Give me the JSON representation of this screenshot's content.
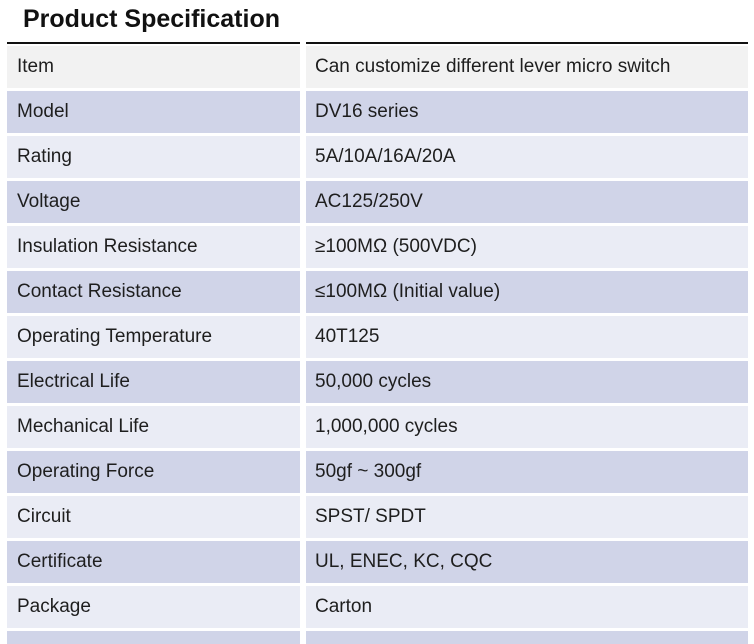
{
  "title": "Product Specification",
  "colors": {
    "title_text": "#111111",
    "top_border": "#111111",
    "row_first_bg": "#f2f2f2",
    "row_alt_dark_bg": "#d0d4e8",
    "row_alt_light_bg": "#eaecf5",
    "cell_text": "#1e1e1e"
  },
  "table": {
    "rows": [
      {
        "label": "Item",
        "value": "Can customize different lever micro switch"
      },
      {
        "label": "Model",
        "value": "DV16 series"
      },
      {
        "label": "Rating",
        "value": "5A/10A/16A/20A"
      },
      {
        "label": "Voltage",
        "value": "AC125/250V"
      },
      {
        "label": "Insulation Resistance",
        "value": "≥100MΩ (500VDC)"
      },
      {
        "label": "Contact Resistance",
        "value": "≤100MΩ (Initial value)"
      },
      {
        "label": "Operating Temperature",
        "value": "40T125"
      },
      {
        "label": "Electrical Life",
        "value": "50,000 cycles"
      },
      {
        "label": "Mechanical Life",
        "value": "1,000,000 cycles"
      },
      {
        "label": "Operating Force",
        "value": "50gf ~ 300gf"
      },
      {
        "label": "Circuit",
        "value": "SPST/ SPDT"
      },
      {
        "label": "Certificate",
        "value": "UL, ENEC, KC, CQC"
      },
      {
        "label": "Package",
        "value": "Carton"
      }
    ]
  }
}
